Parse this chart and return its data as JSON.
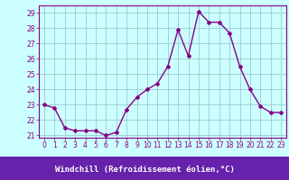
{
  "x": [
    0,
    1,
    2,
    3,
    4,
    5,
    6,
    7,
    8,
    9,
    10,
    11,
    12,
    13,
    14,
    15,
    16,
    17,
    18,
    19,
    20,
    21,
    22,
    23
  ],
  "y": [
    23.0,
    22.8,
    21.5,
    21.3,
    21.3,
    21.3,
    21.0,
    21.2,
    22.7,
    23.5,
    24.0,
    24.4,
    25.5,
    27.9,
    26.2,
    29.1,
    28.4,
    28.4,
    27.7,
    25.5,
    24.0,
    22.9,
    22.5,
    22.5
  ],
  "xlim": [
    -0.5,
    23.5
  ],
  "ylim": [
    20.85,
    29.5
  ],
  "yticks": [
    21,
    22,
    23,
    24,
    25,
    26,
    27,
    28,
    29
  ],
  "xticks": [
    0,
    1,
    2,
    3,
    4,
    5,
    6,
    7,
    8,
    9,
    10,
    11,
    12,
    13,
    14,
    15,
    16,
    17,
    18,
    19,
    20,
    21,
    22,
    23
  ],
  "xlabel": "Windchill (Refroidissement éolien,°C)",
  "line_color": "#880088",
  "marker": "D",
  "marker_size": 2.0,
  "bg_color": "#ccffff",
  "grid_color": "#99cccc",
  "tick_label_color": "#880088",
  "xlabel_color": "#880088",
  "xlabel_bg": "#6633aa",
  "tick_fontsize": 5.5,
  "xlabel_fontsize": 6.5
}
